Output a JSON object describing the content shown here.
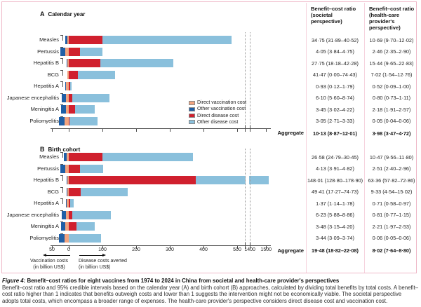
{
  "colors": {
    "direct_vaccination": "#f2a37e",
    "other_vaccination": "#1f5fa6",
    "direct_disease": "#d0202e",
    "other_disease": "#8ac0dc",
    "frame_pink": "#efb9c8"
  },
  "legend": [
    {
      "key": "direct_vaccination",
      "label": "Direct vaccination cost"
    },
    {
      "key": "other_vaccination",
      "label": "Other vaccination cost"
    },
    {
      "key": "direct_disease",
      "label": "Direct disease cost"
    },
    {
      "key": "other_disease",
      "label": "Other disease cost"
    }
  ],
  "columns": {
    "societal_header": "Benefit–cost ratio (societal perspective)",
    "provider_header": "Benefit–cost ratio (health-care provider's perspective)"
  },
  "aggregate_label": "Aggregate",
  "axis": {
    "ticks": [
      {
        "v": -50,
        "label": "50"
      },
      {
        "v": 0,
        "label": "0"
      },
      {
        "v": 100,
        "label": "100"
      },
      {
        "v": 200,
        "label": "200"
      },
      {
        "v": 300,
        "label": "300"
      },
      {
        "v": 400,
        "label": "400"
      },
      {
        "v": 500,
        "label": "500"
      },
      {
        "v": 1400,
        "label": "1400"
      },
      {
        "v": 1500,
        "label": "1500"
      }
    ],
    "note_left_1": "Vaccination costs",
    "note_left_2": "(in billion US$)",
    "note_right_1": "Disease costs averted",
    "note_right_2": "(in billion US$)"
  },
  "chart_data": [
    {
      "type": "bar",
      "orientation": "horizontal-stacked",
      "panel_label": "A",
      "title": "Calendar year",
      "x_unit": "billion US$",
      "xlim_main": [
        -60,
        520
      ],
      "xlim_after_break": [
        1380,
        1520
      ],
      "categories": [
        "Measles",
        "Pertussis",
        "Hepatitis B",
        "BCG",
        "Hepatitis A",
        "Japanese encephalitis",
        "Meningitis A",
        "Poliomyelitis"
      ],
      "series": [
        {
          "name": "Other vaccination cost",
          "key": "other_vaccination",
          "values": [
            6,
            14,
            2,
            1,
            2,
            12,
            13,
            17
          ]
        },
        {
          "name": "Direct vaccination cost",
          "key": "direct_vaccination",
          "values": [
            5,
            10,
            4,
            4,
            9,
            8,
            9,
            12
          ]
        },
        {
          "name": "Direct disease cost",
          "key": "direct_disease",
          "values": [
            99,
            33,
            94,
            27,
            4,
            11,
            19,
            2
          ]
        },
        {
          "name": "Other disease cost",
          "key": "other_disease",
          "values": [
            384,
            68,
            216,
            110,
            4,
            109,
            58,
            84
          ]
        }
      ],
      "bcr_societal": [
        "34·75 (31·89–40·52)",
        "4·05 (3·84–4·75)",
        "27·75 (18·18–42·28)",
        "41·47 (0·00–74·43)",
        "0·93 (0·12–1·79)",
        "6·10 (5·60–8·74)",
        "3·45 (3·02–4·22)",
        "3·05 (2·71–3·33)"
      ],
      "bcr_provider": [
        "10·69 (9·70–12·02)",
        "2·46 (2·35–2·90)",
        "15·44 (9·65–22·83)",
        "7·02 (1·54–12·76)",
        "0·52 (0·09–1·00)",
        "0·80 (0·73–1·11)",
        "2·18 (1·91–2·57)",
        "0·05 (0·04–0·06)"
      ],
      "aggregate_societal": "10·13 (8·87–12·01)",
      "aggregate_provider": "3·98 (3·47–4·72)"
    },
    {
      "type": "bar",
      "orientation": "horizontal-stacked",
      "panel_label": "B",
      "title": "Birth cohort",
      "x_unit": "billion US$",
      "xlim_main": [
        -60,
        520
      ],
      "xlim_after_break": [
        1380,
        1520
      ],
      "categories": [
        "Measles",
        "Pertussis",
        "Hepatitis B",
        "BCG",
        "Hepatitis A",
        "Japanese encephalitis",
        "Meningitis A",
        "Poliomyelitis"
      ],
      "series": [
        {
          "name": "Other vaccination cost",
          "key": "other_vaccination",
          "values": [
            8,
            14,
            2,
            1,
            2,
            11,
            13,
            17
          ]
        },
        {
          "name": "Direct vaccination cost",
          "key": "direct_vaccination",
          "values": [
            7,
            11,
            5,
            5,
            7,
            9,
            10,
            12
          ]
        },
        {
          "name": "Direct disease cost",
          "key": "direct_disease",
          "values": [
            100,
            34,
            378,
            35,
            4,
            10,
            23,
            1
          ]
        },
        {
          "name": "Other disease cost",
          "key": "other_disease",
          "values": [
            269,
            69,
            1137,
            139,
            11,
            114,
            54,
            95
          ]
        }
      ],
      "bcr_societal": [
        "26·58 (24·79–30·45)",
        "4·13 (3·91–4·82)",
        "148·01 (128·80–178·90)",
        "49·41 (17·27–74·73)",
        "1·37 (1·14–1·78)",
        "6·23 (5·88–8·86)",
        "3·48 (3·15–4·20)",
        "3·44 (3·09–3·74)"
      ],
      "bcr_provider": [
        "10·47 (9·56–11·80)",
        "2·51 (2·40–2·96)",
        "63·36 (57·82–72·86)",
        "9·33 (4·54–15·02)",
        "0·71 (0·58–0·97)",
        "0·81 (0·77–1·15)",
        "2·21 (1·97–2·53)",
        "0·06 (0·05–0·06)"
      ],
      "aggregate_societal": "19·48 (18·82–22·08)",
      "aggregate_provider": "8·02 (7·64–8·80)"
    }
  ],
  "caption": {
    "label": "Figure 4:",
    "title": " Benefit–cost ratios for eight vaccines from 1974 to 2024 in China from societal and health-care provider's perspectives",
    "body": "Benefit–cost ratio and 95% credible intervals based on the calendar year (A) and birth cohort (B) approaches, calculated by dividing total benefits by total costs. A benefit–cost ratio higher than 1 indicates that benefits outweigh costs and lower than 1 suggests the intervention might not be economically viable. The societal perspective adopts total costs, which encompass a broader range of expenses. The health-care provider's perspective considers direct disease cost and vaccination cost."
  }
}
